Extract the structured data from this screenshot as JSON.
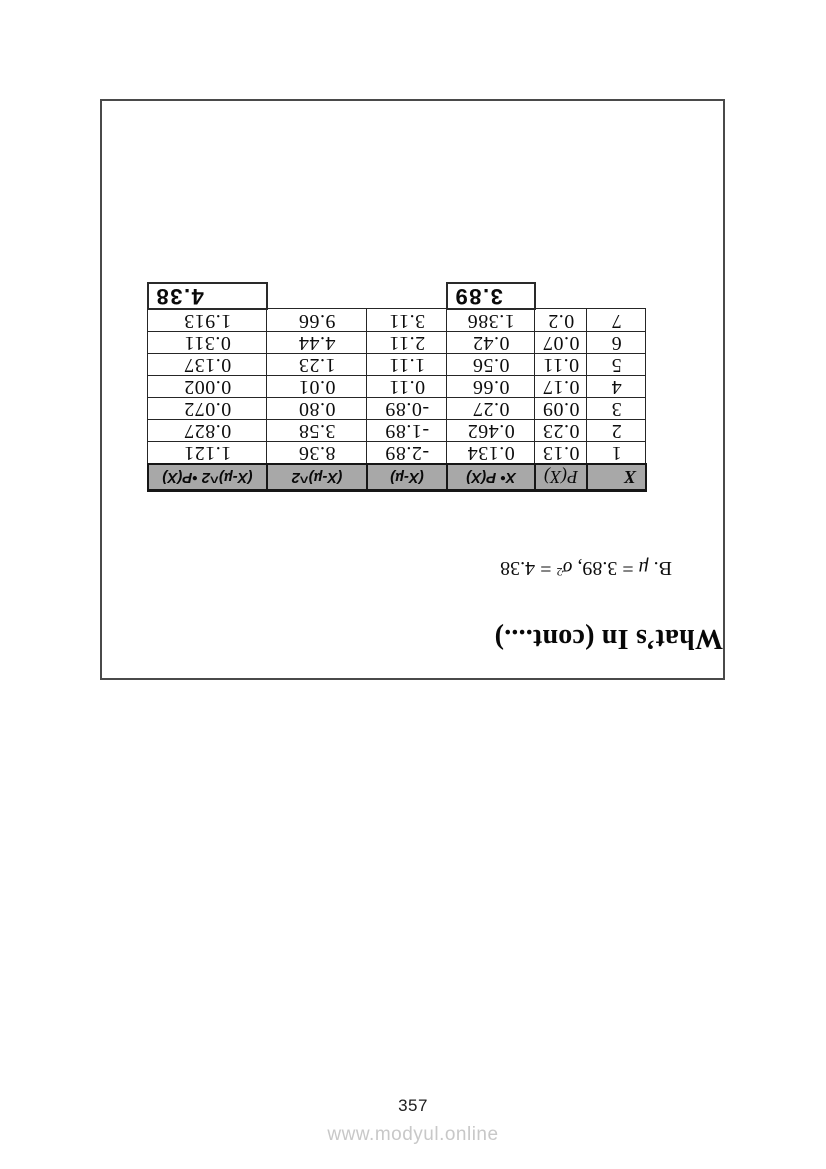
{
  "page": {
    "number": "357",
    "watermark": "www.modyul.online"
  },
  "content": {
    "title": "What’s In (cont....)",
    "orientation_note": "content inside border box printed rotated 180 degrees",
    "result_line": {
      "prefix": "B. ",
      "mu": "μ",
      "mid": " = 3.89, ",
      "sigma": "σ",
      "sup": "2",
      "tail": " = 4.38"
    },
    "table": {
      "headers": [
        "X",
        "P(X)",
        "X• P(X)",
        "(X-µ)",
        "(X-µ)^2",
        "(X-µ)^2 •P(X)"
      ],
      "rows": [
        [
          "1",
          "0.13",
          "0.134",
          "-2.89",
          "8.36",
          "1.121"
        ],
        [
          "2",
          "0.23",
          "0.462",
          "-1.89",
          "3.58",
          "0.827"
        ],
        [
          "3",
          "0.09",
          "0.27",
          "-0.89",
          "0.80",
          "0.072"
        ],
        [
          "4",
          "0.17",
          "0.66",
          "0.11",
          "0.01",
          "0.002"
        ],
        [
          "5",
          "0.11",
          "0.56",
          "1.11",
          "1.23",
          "0.137"
        ],
        [
          "6",
          "0.07",
          "0.42",
          "2.11",
          "4.44",
          "0.311"
        ],
        [
          "7",
          "0.2",
          "1.386",
          "3.11",
          "9.66",
          "1.913"
        ]
      ],
      "totals": {
        "mean": "3.89",
        "variance": "4.38"
      }
    },
    "colors": {
      "header_bg": "#a8a8a8",
      "page_border": "#4a4a4a",
      "watermark_text": "#c8c8c8"
    }
  }
}
